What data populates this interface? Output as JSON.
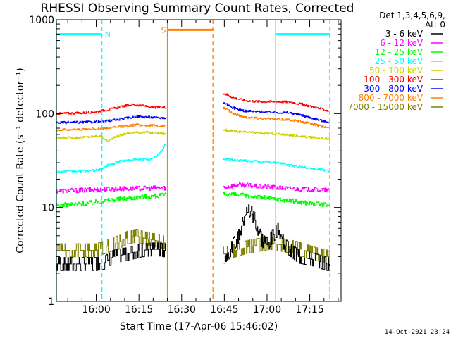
{
  "chart_data": {
    "type": "line",
    "title": "RHESSI Observing Summary Count Rates, Corrected",
    "xlabel": "Start Time (17-Apr-06 15:46:02)",
    "ylabel": "Corrected Count Rate (s⁻¹ detector⁻¹)",
    "yscale": "log",
    "ylim": [
      1,
      1000
    ],
    "xlim_minutes": [
      0,
      100
    ],
    "x_ticks": [
      {
        "min": 14,
        "label": "16:00"
      },
      {
        "min": 29,
        "label": "16:15"
      },
      {
        "min": 44,
        "label": "16:30"
      },
      {
        "min": 59,
        "label": "16:45"
      },
      {
        "min": 74,
        "label": "17:00"
      },
      {
        "min": 89,
        "label": "17:15"
      }
    ],
    "y_ticks": [
      {
        "v": 1,
        "label": "1"
      },
      {
        "v": 10,
        "label": "10"
      },
      {
        "v": 100,
        "label": "100"
      },
      {
        "v": 1000,
        "label": "1000"
      }
    ],
    "legend_header": [
      "Det 1,3,4,5,6,9,",
      "Att 0"
    ],
    "series": [
      {
        "name": "3 - 6 keV",
        "color": "#000000",
        "x": [
          0,
          14,
          17,
          20,
          25,
          30,
          35,
          38,
          59,
          61,
          64,
          66,
          68,
          70,
          72,
          74,
          76,
          78,
          80,
          85,
          90,
          95,
          96
        ],
        "y": [
          2.5,
          2.5,
          2.6,
          3,
          3.2,
          3.5,
          3.6,
          3.5,
          3,
          3.5,
          5,
          8,
          9.5,
          7,
          4.5,
          4,
          5,
          6,
          4,
          3,
          2.8,
          2.5,
          2.5
        ]
      },
      {
        "name": "6 - 12 keV",
        "color": "#ff00ff",
        "x": [
          0,
          10,
          20,
          30,
          38,
          59,
          65,
          70,
          75,
          80,
          85,
          90,
          96
        ],
        "y": [
          15,
          15.3,
          15.8,
          16,
          16.2,
          16.5,
          17.5,
          16.8,
          16.5,
          16,
          15.8,
          15.5,
          15.2
        ]
      },
      {
        "name": "12 - 25 keV",
        "color": "#00ff00",
        "x": [
          0,
          10,
          18,
          25,
          30,
          38,
          59,
          65,
          70,
          75,
          80,
          85,
          90,
          96
        ],
        "y": [
          10.5,
          11,
          12,
          12.5,
          13,
          13.5,
          14,
          13.5,
          13,
          12.5,
          12,
          11.5,
          11,
          10.5
        ]
      },
      {
        "name": "25 - 50 keV",
        "color": "#00ffff",
        "x": [
          0,
          10,
          15,
          18,
          22,
          26,
          30,
          34,
          37,
          38,
          59,
          62,
          66,
          70,
          74,
          78,
          82,
          86,
          90,
          94,
          96
        ],
        "y": [
          24,
          24.5,
          25,
          28,
          31,
          32,
          32.5,
          33,
          40,
          47,
          33,
          32,
          31.5,
          31,
          30.5,
          30,
          28,
          27,
          26,
          25,
          24.5
        ]
      },
      {
        "name": "50 - 100 keV",
        "color": "#d0d000",
        "x": [
          0,
          10,
          15,
          18,
          20,
          24,
          28,
          32,
          36,
          38,
          59,
          64,
          68,
          72,
          76,
          80,
          84,
          88,
          92,
          96
        ],
        "y": [
          55,
          56,
          58,
          51,
          55,
          61,
          63,
          63,
          62,
          61,
          67,
          64,
          63,
          62,
          61,
          60,
          58,
          56,
          55,
          54
        ]
      },
      {
        "name": "100 - 300 keV",
        "color": "#ff0000",
        "x": [
          0,
          5,
          10,
          15,
          20,
          24,
          27,
          30,
          34,
          38,
          59,
          62,
          66,
          70,
          74,
          78,
          82,
          86,
          90,
          94,
          96
        ],
        "y": [
          100,
          101,
          102,
          106,
          113,
          121,
          125,
          122,
          116,
          116,
          163,
          148,
          138,
          135,
          134,
          134,
          133,
          126,
          118,
          110,
          106
        ]
      },
      {
        "name": "300 - 800 keV",
        "color": "#0000ff",
        "x": [
          0,
          10,
          15,
          20,
          25,
          28,
          32,
          36,
          38,
          59,
          62,
          66,
          70,
          74,
          78,
          82,
          86,
          90,
          94,
          96
        ],
        "y": [
          80,
          81,
          82,
          85,
          90,
          93,
          92,
          90,
          90,
          130,
          115,
          107,
          105,
          104,
          103,
          102,
          96,
          89,
          83,
          81
        ]
      },
      {
        "name": "800 - 7000 keV",
        "color": "#ff8000",
        "x": [
          0,
          10,
          15,
          20,
          25,
          28,
          32,
          36,
          38,
          59,
          62,
          66,
          70,
          74,
          78,
          82,
          86,
          90,
          94,
          96
        ],
        "y": [
          67,
          68,
          69,
          71,
          74,
          76,
          75,
          74,
          74,
          115,
          100,
          92,
          90,
          88,
          87,
          86,
          82,
          77,
          72,
          70
        ]
      },
      {
        "name": "7000 - 15000 keV",
        "color": "#808000",
        "x": [
          0,
          14,
          17,
          19,
          22,
          25,
          28,
          31,
          34,
          37,
          38,
          59,
          63,
          67,
          71,
          75,
          79,
          83,
          87,
          91,
          95,
          96
        ],
        "y": [
          3.5,
          3.5,
          3.8,
          4,
          4.3,
          4.8,
          5,
          4.7,
          4.5,
          4.3,
          4.2,
          3.2,
          3.5,
          3.8,
          4,
          4.2,
          4,
          3.8,
          3.5,
          3.2,
          3,
          3
        ]
      }
    ],
    "annotations": [
      {
        "type": "span_marker",
        "label": "N",
        "color": "#00ffff",
        "x_start": 0,
        "x_end": 16,
        "level": 700
      },
      {
        "type": "span_marker",
        "label": "",
        "color": "#00ffff",
        "x_start": 77,
        "x_end": 96,
        "level": 700
      },
      {
        "type": "span_marker",
        "label": "S",
        "color": "#ff8000",
        "x_start": 39,
        "x_end": 55,
        "level": 780
      },
      {
        "type": "vline",
        "color": "#00ffff",
        "style": "solid",
        "x": 0
      },
      {
        "type": "vline",
        "color": "#00ffff",
        "style": "dashed",
        "x": 16
      },
      {
        "type": "vline",
        "color": "#00ffff",
        "style": "solid",
        "x": 77
      },
      {
        "type": "vline",
        "color": "#00ffff",
        "style": "dashed",
        "x": 96
      },
      {
        "type": "vline",
        "color": "#ff8000",
        "style": "solid",
        "x": 39
      },
      {
        "type": "vline",
        "color": "#ff8000",
        "style": "dashed",
        "x": 55
      }
    ],
    "data_gap_minutes": [
      38.5,
      58.5
    ]
  },
  "footer": {
    "timestamp": "14-Oct-2021 23:24"
  }
}
